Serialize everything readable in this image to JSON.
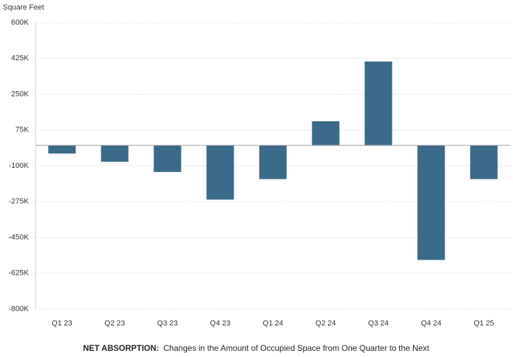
{
  "chart_data": {
    "type": "bar",
    "y_label": "Square Feet",
    "caption": {
      "label": "NET ABSORPTION:",
      "text": "Changes in the Amount of Occupied Space from One Quarter to the Next"
    },
    "categories": [
      "Q1 23",
      "Q2 23",
      "Q3 23",
      "Q4 23",
      "Q1 24",
      "Q2 24",
      "Q3 24",
      "Q4 24",
      "Q1 25"
    ],
    "values": [
      -40000,
      -80000,
      -130000,
      -265000,
      -165000,
      118000,
      410000,
      -560000,
      -165000
    ],
    "color": "#3a6a8a",
    "ylim": [
      -800000,
      600000
    ],
    "yticks": [
      {
        "value": 600000,
        "label": "600K"
      },
      {
        "value": 425000,
        "label": "425K"
      },
      {
        "value": 250000,
        "label": "250K"
      },
      {
        "value": 75000,
        "label": "75K"
      },
      {
        "value": -100000,
        "label": "-100K"
      },
      {
        "value": -275000,
        "label": "-275K"
      },
      {
        "value": -450000,
        "label": "-450K"
      },
      {
        "value": -625000,
        "label": "-625K"
      },
      {
        "value": -800000,
        "label": "-800K"
      }
    ],
    "grid": true
  }
}
